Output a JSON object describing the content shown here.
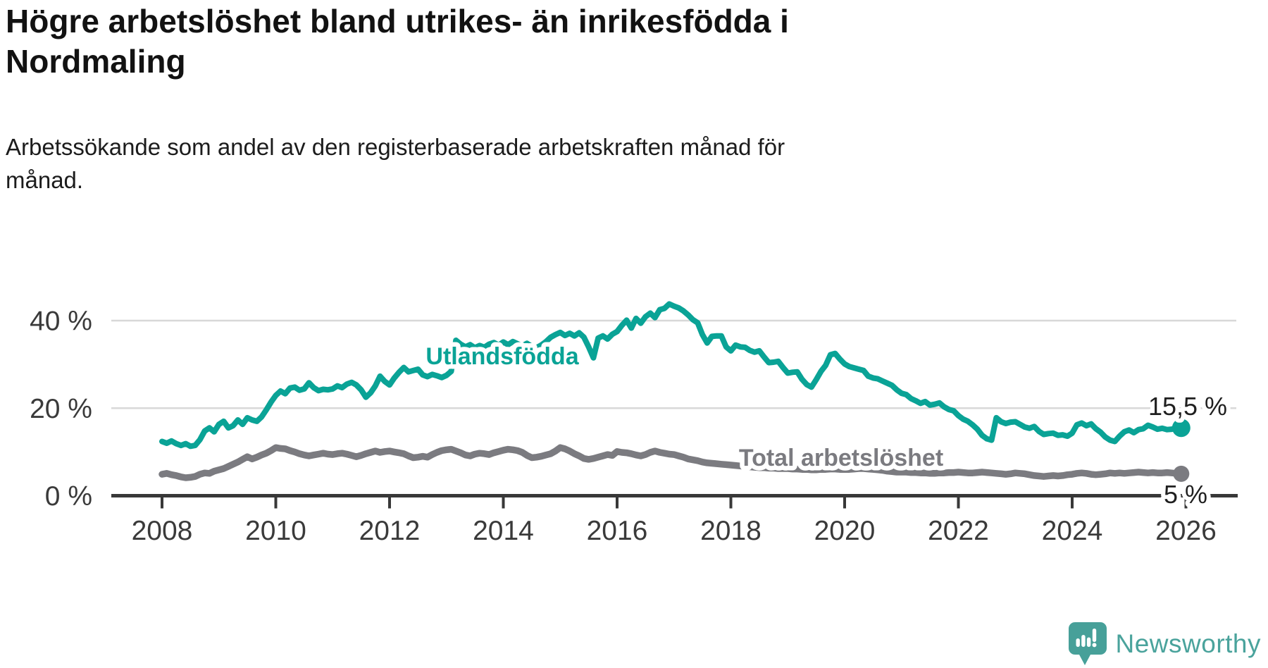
{
  "title": "Högre arbetslöshet bland utrikes- än inrikesfödda i Nordmaling",
  "title_lines": [
    "Högre arbetslöshet bland utrikes- än inrikesfödda i",
    "Nordmaling"
  ],
  "subtitle": "Arbetssökande som andel av den registerbaserade arbetskraften månad för månad.",
  "subtitle_lines": [
    "Arbetssökande som andel av den registerbaserade arbetskraften månad för",
    "månad."
  ],
  "branding": {
    "name": "Newsworthy"
  },
  "colors": {
    "foreign_line": "#0aa396",
    "total_line": "#7b7b80",
    "grid": "#d8d8d8",
    "axis": "#383838",
    "tick_text": "#3a3a3a",
    "value_text": "#1f1f1f",
    "brand_teal": "#47a099",
    "background": "#ffffff"
  },
  "chart_data": {
    "type": "line",
    "title": "Högre arbetslöshet bland utrikes- än inrikesfödda i Nordmaling",
    "subtitle": "Arbetssökande som andel av den registerbaserade arbetskraften månad för månad.",
    "x_unit": "year-month",
    "x_start": "2008-01",
    "x_end": "2025-12",
    "x_step_months": 1,
    "xlim": [
      2007.9,
      2026.3
    ],
    "ylim": [
      0,
      48
    ],
    "grid": "horizontal",
    "legend": "inline-labels",
    "yticks": [
      {
        "value": 0,
        "label": "0 %"
      },
      {
        "value": 20,
        "label": "20 %"
      },
      {
        "value": 40,
        "label": "40 %"
      }
    ],
    "xticks": [
      {
        "year": 2008,
        "label": "2008"
      },
      {
        "year": 2010,
        "label": "2010"
      },
      {
        "year": 2012,
        "label": "2012"
      },
      {
        "year": 2014,
        "label": "2014"
      },
      {
        "year": 2016,
        "label": "2016"
      },
      {
        "year": 2018,
        "label": "2018"
      },
      {
        "year": 2020,
        "label": "2020"
      },
      {
        "year": 2022,
        "label": "2022"
      },
      {
        "year": 2024,
        "label": "2024"
      },
      {
        "year": 2026,
        "label": "2026"
      }
    ],
    "series": [
      {
        "name": "Utlandsfödda",
        "color": "#0aa396",
        "end_label": "15,5 %",
        "end_value": 15.5,
        "values": [
          12.4,
          12.0,
          12.5,
          11.9,
          11.5,
          11.9,
          11.3,
          11.5,
          12.8,
          14.8,
          15.5,
          14.6,
          16.3,
          17.0,
          15.5,
          16.0,
          17.3,
          16.3,
          17.8,
          17.3,
          17.0,
          18.0,
          19.6,
          21.4,
          22.9,
          23.9,
          23.3,
          24.6,
          24.8,
          24.1,
          24.4,
          25.8,
          24.7,
          24.0,
          24.3,
          24.2,
          24.4,
          25.1,
          24.7,
          25.5,
          25.9,
          25.3,
          24.2,
          22.5,
          23.5,
          25.1,
          27.3,
          26.1,
          25.3,
          26.9,
          28.2,
          29.3,
          28.3,
          28.6,
          28.9,
          27.6,
          27.2,
          27.7,
          27.4,
          27.0,
          27.5,
          28.4,
          35.5,
          34.6,
          34.0,
          34.5,
          33.8,
          34.3,
          33.9,
          34.6,
          35.0,
          34.4,
          35.1,
          34.5,
          35.2,
          34.7,
          34.2,
          34.8,
          34.1,
          33.8,
          34.4,
          35.2,
          36.2,
          36.8,
          37.3,
          36.6,
          37.1,
          36.5,
          37.2,
          36.2,
          34.0,
          31.5,
          36.0,
          36.5,
          35.8,
          36.9,
          37.5,
          38.9,
          40.1,
          38.3,
          40.5,
          39.4,
          40.9,
          41.7,
          40.7,
          42.5,
          42.8,
          43.8,
          43.3,
          42.9,
          42.2,
          41.3,
          40.2,
          39.5,
          36.8,
          34.9,
          36.4,
          36.5,
          36.5,
          34.0,
          33.1,
          34.4,
          34.0,
          33.9,
          33.2,
          32.8,
          33.1,
          31.7,
          30.4,
          30.5,
          30.7,
          29.3,
          28.0,
          28.2,
          28.3,
          26.6,
          25.4,
          24.8,
          26.5,
          28.4,
          29.8,
          32.2,
          32.5,
          31.2,
          30.1,
          29.5,
          29.2,
          28.9,
          28.6,
          27.3,
          26.9,
          26.7,
          26.2,
          25.7,
          25.2,
          24.2,
          23.4,
          23.1,
          22.2,
          21.7,
          21.1,
          21.5,
          20.7,
          20.9,
          21.2,
          20.3,
          19.7,
          19.4,
          18.3,
          17.5,
          17.0,
          16.2,
          15.2,
          13.8,
          13.0,
          12.7,
          17.8,
          16.9,
          16.5,
          16.8,
          16.9,
          16.3,
          15.7,
          15.4,
          15.8,
          14.7,
          14.0,
          14.2,
          14.3,
          13.8,
          13.9,
          13.6,
          14.3,
          16.2,
          16.6,
          16.0,
          16.4,
          15.3,
          14.5,
          13.4,
          12.7,
          12.4,
          13.6,
          14.6,
          15.0,
          14.4,
          15.1,
          15.3,
          16.1,
          15.7,
          15.2,
          15.4,
          15.1,
          15.2,
          15.4,
          15.5
        ]
      },
      {
        "name": "Total arbetslöshet",
        "color": "#7b7b80",
        "end_label": "5 %",
        "end_value": 5.0,
        "values": [
          4.9,
          5.1,
          4.8,
          4.6,
          4.3,
          4.1,
          4.2,
          4.4,
          4.9,
          5.2,
          5.1,
          5.6,
          5.9,
          6.2,
          6.7,
          7.2,
          7.7,
          8.3,
          8.9,
          8.4,
          8.8,
          9.3,
          9.7,
          10.3,
          11.0,
          10.8,
          10.7,
          10.3,
          10.0,
          9.6,
          9.3,
          9.1,
          9.3,
          9.5,
          9.7,
          9.5,
          9.4,
          9.6,
          9.7,
          9.5,
          9.2,
          8.9,
          9.2,
          9.6,
          9.9,
          10.2,
          9.9,
          10.1,
          10.2,
          10.0,
          9.8,
          9.6,
          9.1,
          8.7,
          8.8,
          9.0,
          8.8,
          9.4,
          9.9,
          10.3,
          10.5,
          10.6,
          10.2,
          9.8,
          9.3,
          9.1,
          9.5,
          9.7,
          9.6,
          9.4,
          9.8,
          10.1,
          10.4,
          10.6,
          10.5,
          10.3,
          9.9,
          9.2,
          8.7,
          8.8,
          9.0,
          9.3,
          9.6,
          10.2,
          11.0,
          10.7,
          10.2,
          9.6,
          9.1,
          8.5,
          8.3,
          8.5,
          8.8,
          9.1,
          9.4,
          9.2,
          10.1,
          9.9,
          9.8,
          9.6,
          9.3,
          9.1,
          9.4,
          9.9,
          10.2,
          9.9,
          9.7,
          9.5,
          9.4,
          9.1,
          8.8,
          8.4,
          8.2,
          8.0,
          7.7,
          7.5,
          7.4,
          7.3,
          7.2,
          7.1,
          7.0,
          6.9,
          6.8,
          6.7,
          6.6,
          6.5,
          6.4,
          6.4,
          6.3,
          6.3,
          6.2,
          6.2,
          6.2,
          6.1,
          6.1,
          6.0,
          6.0,
          5.9,
          5.9,
          6.0,
          6.0,
          6.1,
          6.1,
          6.0,
          6.0,
          6.0,
          6.1,
          6.2,
          6.2,
          6.1,
          6.0,
          5.9,
          5.8,
          5.6,
          5.5,
          5.4,
          5.4,
          5.4,
          5.3,
          5.3,
          5.2,
          5.2,
          5.1,
          5.1,
          5.2,
          5.2,
          5.3,
          5.3,
          5.4,
          5.3,
          5.2,
          5.2,
          5.3,
          5.4,
          5.3,
          5.2,
          5.1,
          5.0,
          4.9,
          5.0,
          5.2,
          5.1,
          5.0,
          4.8,
          4.6,
          4.5,
          4.4,
          4.5,
          4.6,
          4.5,
          4.6,
          4.8,
          4.9,
          5.1,
          5.2,
          5.1,
          4.9,
          4.8,
          4.9,
          5.0,
          5.2,
          5.1,
          5.2,
          5.1,
          5.2,
          5.3,
          5.4,
          5.3,
          5.2,
          5.3,
          5.2,
          5.2,
          5.3,
          5.2,
          5.1,
          5.0
        ]
      }
    ]
  }
}
